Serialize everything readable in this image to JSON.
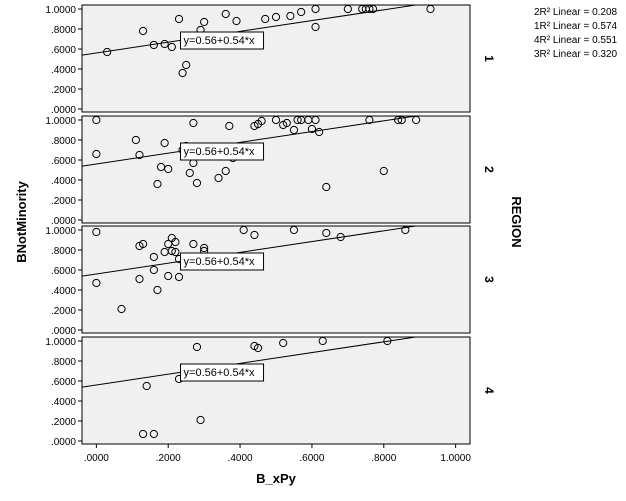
{
  "chart_data": {
    "type": "scatter",
    "xlabel": "B_xPy",
    "ylabel": "BNotMinority",
    "panel_title": "REGION",
    "xlim": [
      -0.04,
      1.04
    ],
    "ylim": [
      -0.03,
      1.04
    ],
    "x_ticks": [
      ".0000",
      ".2000",
      ".4000",
      ".6000",
      ".8000",
      "1.0000"
    ],
    "x_tick_values": [
      0,
      0.2,
      0.4,
      0.6,
      0.8,
      1.0
    ],
    "y_ticks": [
      ".0000",
      ".2000",
      ".4000",
      ".6000",
      ".8000",
      "1.0000"
    ],
    "y_tick_values": [
      0,
      0.2,
      0.4,
      0.6,
      0.8,
      1.0
    ],
    "grid": false,
    "fit_line": {
      "intercept": 0.56,
      "slope": 0.54,
      "label": "y=0.56+0.54*x"
    },
    "legend": [
      {
        "text": "2R² Linear = 0.208"
      },
      {
        "text": "1R² Linear = 0.574"
      },
      {
        "text": "4R² Linear = 0.551"
      },
      {
        "text": "3R² Linear = 0.320"
      }
    ],
    "legend_placement": "top-right",
    "colors": {
      "panel_bg": "#f0f0f0",
      "marker": "#000000",
      "line": "#000000"
    },
    "panels": [
      {
        "label": "1",
        "label_x": 0.6,
        "points": [
          [
            0.03,
            0.57
          ],
          [
            0.13,
            0.78
          ],
          [
            0.16,
            0.64
          ],
          [
            0.19,
            0.65
          ],
          [
            0.21,
            0.62
          ],
          [
            0.23,
            0.9
          ],
          [
            0.24,
            0.36
          ],
          [
            0.25,
            0.44
          ],
          [
            0.29,
            0.79
          ],
          [
            0.3,
            0.87
          ],
          [
            0.31,
            0.68
          ],
          [
            0.36,
            0.95
          ],
          [
            0.39,
            0.88
          ],
          [
            0.47,
            0.9
          ],
          [
            0.5,
            0.92
          ],
          [
            0.54,
            0.93
          ],
          [
            0.57,
            0.97
          ],
          [
            0.61,
            1.0
          ],
          [
            0.61,
            0.82
          ],
          [
            0.7,
            1.0
          ],
          [
            0.74,
            1.0
          ],
          [
            0.75,
            1.0
          ],
          [
            0.76,
            1.0
          ],
          [
            0.77,
            1.0
          ],
          [
            0.93,
            1.0
          ]
        ]
      },
      {
        "label": "2",
        "label_x": 0.6,
        "points": [
          [
            0.0,
            1.0
          ],
          [
            0.0,
            0.66
          ],
          [
            0.11,
            0.8
          ],
          [
            0.12,
            0.65
          ],
          [
            0.17,
            0.36
          ],
          [
            0.18,
            0.53
          ],
          [
            0.19,
            0.77
          ],
          [
            0.2,
            0.51
          ],
          [
            0.24,
            0.7
          ],
          [
            0.25,
            0.74
          ],
          [
            0.26,
            0.47
          ],
          [
            0.27,
            0.57
          ],
          [
            0.27,
            0.97
          ],
          [
            0.28,
            0.37
          ],
          [
            0.34,
            0.42
          ],
          [
            0.36,
            0.49
          ],
          [
            0.37,
            0.94
          ],
          [
            0.38,
            0.62
          ],
          [
            0.39,
            0.64
          ],
          [
            0.44,
            0.94
          ],
          [
            0.45,
            0.96
          ],
          [
            0.46,
            0.99
          ],
          [
            0.5,
            1.0
          ],
          [
            0.52,
            0.95
          ],
          [
            0.53,
            0.97
          ],
          [
            0.55,
            0.9
          ],
          [
            0.56,
            1.0
          ],
          [
            0.57,
            1.0
          ],
          [
            0.59,
            1.0
          ],
          [
            0.6,
            0.91
          ],
          [
            0.61,
            1.0
          ],
          [
            0.62,
            0.88
          ],
          [
            0.64,
            0.33
          ],
          [
            0.76,
            1.0
          ],
          [
            0.8,
            0.49
          ],
          [
            0.84,
            1.0
          ],
          [
            0.85,
            1.0
          ],
          [
            0.89,
            1.0
          ]
        ]
      },
      {
        "label": "3",
        "label_x": 0.6,
        "points": [
          [
            0.0,
            0.98
          ],
          [
            0.0,
            0.47
          ],
          [
            0.07,
            0.21
          ],
          [
            0.12,
            0.84
          ],
          [
            0.12,
            0.51
          ],
          [
            0.13,
            0.86
          ],
          [
            0.16,
            0.6
          ],
          [
            0.16,
            0.73
          ],
          [
            0.17,
            0.4
          ],
          [
            0.19,
            0.78
          ],
          [
            0.2,
            0.54
          ],
          [
            0.2,
            0.86
          ],
          [
            0.21,
            0.92
          ],
          [
            0.21,
            0.79
          ],
          [
            0.22,
            0.78
          ],
          [
            0.22,
            0.88
          ],
          [
            0.23,
            0.53
          ],
          [
            0.23,
            0.71
          ],
          [
            0.27,
            0.86
          ],
          [
            0.3,
            0.79
          ],
          [
            0.3,
            0.82
          ],
          [
            0.31,
            0.65
          ],
          [
            0.41,
            1.0
          ],
          [
            0.44,
            0.95
          ],
          [
            0.55,
            1.0
          ],
          [
            0.64,
            0.97
          ],
          [
            0.68,
            0.93
          ],
          [
            0.86,
            1.0
          ]
        ]
      },
      {
        "label": "4",
        "label_x": 0.6,
        "points": [
          [
            0.13,
            0.07
          ],
          [
            0.14,
            0.55
          ],
          [
            0.16,
            0.07
          ],
          [
            0.23,
            0.62
          ],
          [
            0.28,
            0.94
          ],
          [
            0.29,
            0.21
          ],
          [
            0.31,
            0.64
          ],
          [
            0.44,
            0.95
          ],
          [
            0.45,
            0.93
          ],
          [
            0.52,
            0.98
          ],
          [
            0.63,
            1.0
          ],
          [
            0.81,
            1.0
          ]
        ]
      }
    ]
  }
}
